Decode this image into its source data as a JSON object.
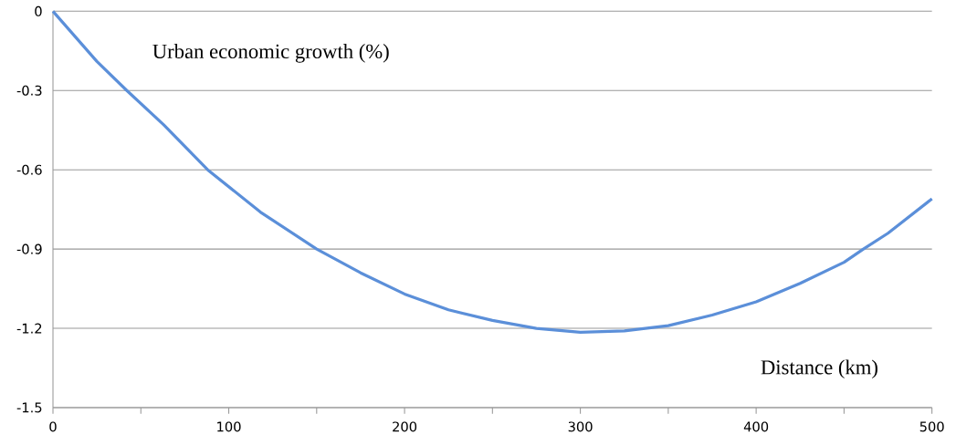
{
  "chart_data": {
    "type": "line",
    "xlabel": "Distance (km)",
    "ylabel": "Urban economic growth (%)",
    "x": [
      0,
      25,
      42,
      63,
      88,
      118,
      150,
      175,
      200,
      225,
      250,
      275,
      300,
      325,
      350,
      375,
      400,
      425,
      450,
      461,
      475,
      500
    ],
    "series": [
      {
        "color": "#5b8fd9",
        "values": [
          0,
          -0.19,
          -0.3,
          -0.43,
          -0.6,
          -0.76,
          -0.9,
          -0.99,
          -1.07,
          -1.13,
          -1.17,
          -1.2,
          -1.215,
          -1.21,
          -1.19,
          -1.15,
          -1.1,
          -1.03,
          -0.95,
          -0.9,
          -0.84,
          -0.71
        ]
      }
    ],
    "xlim": [
      0,
      500
    ],
    "ylim": [
      -1.5,
      0
    ],
    "xticks": [
      0,
      {
        "value": 50,
        "label": null
      },
      100,
      {
        "value": 150,
        "label": null
      },
      200,
      {
        "value": 250,
        "label": null
      },
      300,
      {
        "value": 350,
        "label": null
      },
      400,
      {
        "value": 450,
        "label": null
      },
      500
    ],
    "yticks": [
      0,
      -0.3,
      -0.6,
      -0.9,
      -1.2,
      -1.5
    ],
    "grid": "y",
    "marker": "none",
    "line_style": "solid"
  }
}
